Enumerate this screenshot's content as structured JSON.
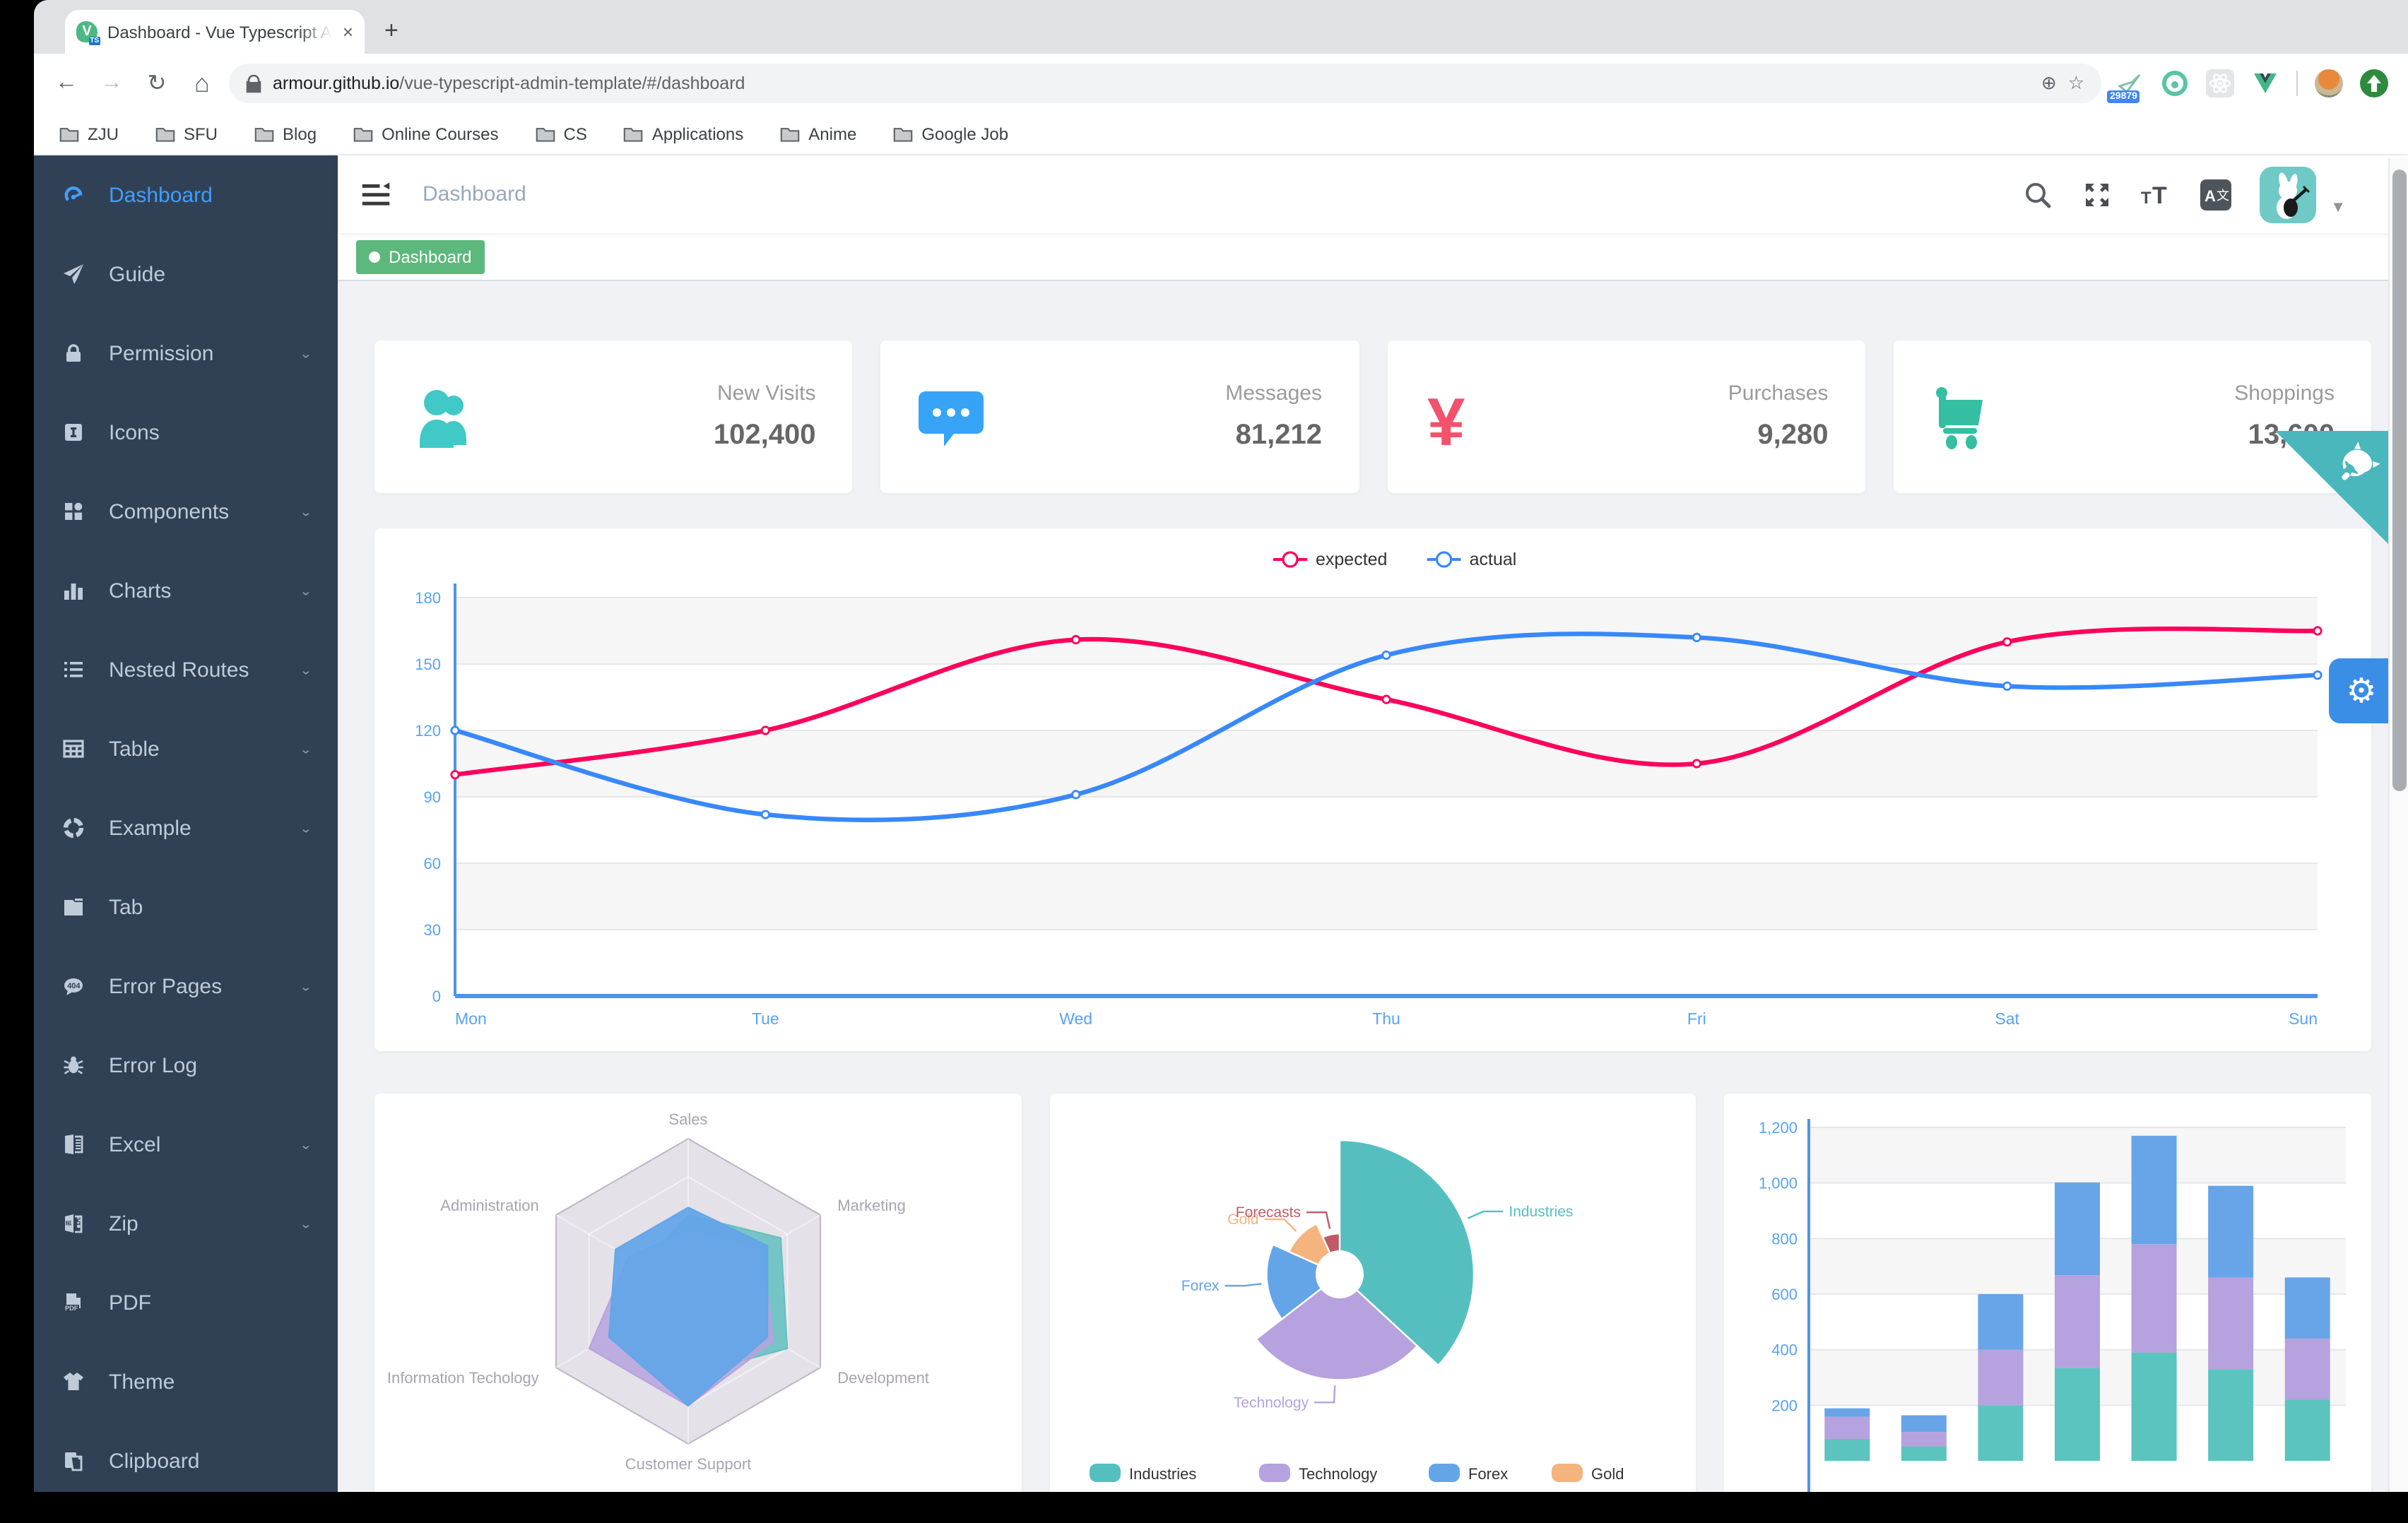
{
  "browser": {
    "tab_title": "Dashboard - Vue Typescript Ad",
    "close_tab_glyph": "×",
    "new_tab_glyph": "+",
    "url_domain": "armour.github.io",
    "url_path": "/vue-typescript-admin-template/#/dashboard",
    "extension_badge": "29879",
    "bookmarks": [
      "ZJU",
      "SFU",
      "Blog",
      "Online Courses",
      "CS",
      "Applications",
      "Anime",
      "Google Job"
    ]
  },
  "sidebar": {
    "items": [
      {
        "label": "Dashboard",
        "icon": "dashboard-icon",
        "active": true,
        "arrow": false
      },
      {
        "label": "Guide",
        "icon": "guide-icon",
        "arrow": false
      },
      {
        "label": "Permission",
        "icon": "lock-icon",
        "arrow": true
      },
      {
        "label": "Icons",
        "icon": "icons-icon",
        "arrow": false
      },
      {
        "label": "Components",
        "icon": "components-icon",
        "arrow": true
      },
      {
        "label": "Charts",
        "icon": "charts-icon",
        "arrow": true
      },
      {
        "label": "Nested Routes",
        "icon": "nested-routes-icon",
        "arrow": true
      },
      {
        "label": "Table",
        "icon": "table-icon",
        "arrow": true
      },
      {
        "label": "Example",
        "icon": "example-icon",
        "arrow": true
      },
      {
        "label": "Tab",
        "icon": "tab-icon",
        "arrow": false
      },
      {
        "label": "Error Pages",
        "icon": "error-pages-icon",
        "arrow": true
      },
      {
        "label": "Error Log",
        "icon": "bug-icon",
        "arrow": false
      },
      {
        "label": "Excel",
        "icon": "excel-icon",
        "arrow": true
      },
      {
        "label": "Zip",
        "icon": "zip-icon",
        "arrow": true
      },
      {
        "label": "PDF",
        "icon": "pdf-icon",
        "arrow": false
      },
      {
        "label": "Theme",
        "icon": "theme-icon",
        "arrow": false
      },
      {
        "label": "Clipboard",
        "icon": "clipboard-icon",
        "arrow": false
      }
    ],
    "colors": {
      "bg": "#304156",
      "text": "#BFCBD9",
      "active": "#409EFF"
    }
  },
  "navbar": {
    "breadcrumb": "Dashboard"
  },
  "tags": [
    {
      "label": "Dashboard",
      "active": true,
      "color": "#5CB87C"
    }
  ],
  "stat_cards": [
    {
      "label": "New Visits",
      "value": "102,400",
      "icon": "peoples-icon",
      "color": "#40C9C6"
    },
    {
      "label": "Messages",
      "value": "81,212",
      "icon": "message-icon",
      "color": "#36A3F7"
    },
    {
      "label": "Purchases",
      "value": "9,280",
      "icon": "money-icon",
      "color": "#F4516C"
    },
    {
      "label": "Shoppings",
      "value": "13,600",
      "icon": "shopping-icon",
      "color": "#34BFA3"
    }
  ],
  "chart_data": [
    {
      "type": "line",
      "x": [
        "Mon",
        "Tue",
        "Wed",
        "Thu",
        "Fri",
        "Sat",
        "Sun"
      ],
      "series": [
        {
          "name": "expected",
          "color": "#FF005A",
          "values": [
            100,
            120,
            161,
            134,
            105,
            160,
            165
          ]
        },
        {
          "name": "actual",
          "color": "#3888FA",
          "values": [
            120,
            82,
            91,
            154,
            162,
            140,
            145
          ]
        }
      ],
      "ylim": [
        0,
        180
      ],
      "ytick_step": 30,
      "legend_position": "top",
      "grid": true,
      "axis_color": "#57A3F3"
    },
    {
      "type": "radar",
      "indicators": [
        {
          "name": "Sales",
          "max": 10000
        },
        {
          "name": "Marketing",
          "max": 20000
        },
        {
          "name": "Development",
          "max": 20000
        },
        {
          "name": "Customer Support",
          "max": 20000
        },
        {
          "name": "Information Techology",
          "max": 20000
        },
        {
          "name": "Administration",
          "max": 20000
        }
      ],
      "series": [
        {
          "name": "teal-series",
          "color": "#61C0BF",
          "values": [
            5000,
            14000,
            15000,
            11000,
            12000,
            7000
          ]
        },
        {
          "name": "purple-series",
          "color": "#B6A2DE",
          "values": [
            4000,
            11000,
            13000,
            15000,
            15000,
            9000
          ]
        },
        {
          "name": "blue-series",
          "color": "#64A5E8",
          "values": [
            5500,
            12000,
            12000,
            15000,
            12000,
            11000
          ]
        }
      ]
    },
    {
      "type": "pie",
      "rose": true,
      "slices": [
        {
          "name": "Industries",
          "value": 320,
          "color": "#55BFC0"
        },
        {
          "name": "Technology",
          "value": 240,
          "color": "#B6A2DE"
        },
        {
          "name": "Forex",
          "value": 149,
          "color": "#64A5E8"
        },
        {
          "name": "Gold",
          "value": 100,
          "color": "#F5B37E"
        },
        {
          "name": "Forecasts",
          "value": 59,
          "color": "#BF5B67"
        }
      ],
      "legend": [
        "Industries",
        "Technology",
        "Forex",
        "Gold"
      ],
      "legend_position": "bottom"
    },
    {
      "type": "bar",
      "stacked": true,
      "yticks": [
        "200",
        "400",
        "600",
        "800",
        "1,000",
        "1,200"
      ],
      "ylim": [
        0,
        1200
      ],
      "series": [
        {
          "name": "teal-stack",
          "color": "#5BC4BF",
          "values": [
            79,
            52,
            200,
            334,
            390,
            330,
            220
          ]
        },
        {
          "name": "purple-stack",
          "color": "#B6A2DE",
          "values": [
            80,
            52,
            200,
            334,
            390,
            330,
            220
          ]
        },
        {
          "name": "blue-stack",
          "color": "#67A5E8",
          "values": [
            30,
            60,
            200,
            334,
            390,
            330,
            220
          ]
        }
      ],
      "axis_color": "#57A3F3"
    }
  ]
}
